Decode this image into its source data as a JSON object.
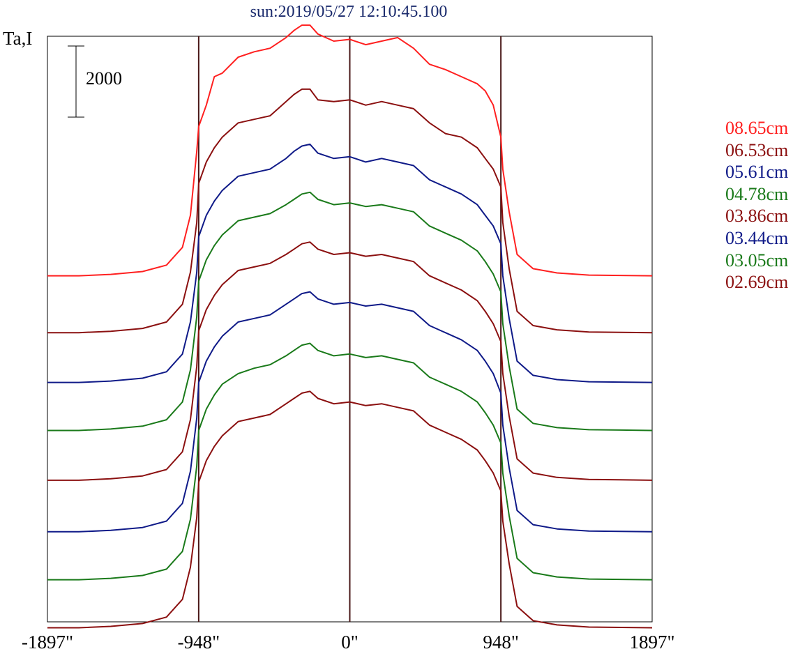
{
  "title": "sun:2019/05/27 12:10:45.100",
  "chart_data": {
    "type": "line",
    "title": "sun:2019/05/27 12:10:45.100",
    "ylabel": "Ta,I",
    "xlabel": "",
    "scale_bar_label": "2000",
    "scale_bar_value": 2000,
    "xlim": [
      -1897,
      1897
    ],
    "x_ticks": [
      {
        "value": -1897,
        "label": "-1897\""
      },
      {
        "value": -948,
        "label": "-948\""
      },
      {
        "value": 0,
        "label": "0\""
      },
      {
        "value": 948,
        "label": "948\""
      },
      {
        "value": 1897,
        "label": "1897\""
      }
    ],
    "vertical_markers": [
      -948,
      0,
      948
    ],
    "marker_color": "#4a1818",
    "legend_position": "right",
    "series": [
      {
        "name": "08.65cm",
        "color": "#ff2020",
        "baseline": 6400,
        "x": [
          -1897,
          -1700,
          -1500,
          -1300,
          -1150,
          -1050,
          -1000,
          -960,
          -948,
          -900,
          -850,
          -800,
          -700,
          -600,
          -500,
          -400,
          -350,
          -300,
          -250,
          -200,
          -100,
          0,
          100,
          200,
          300,
          400,
          500,
          600,
          700,
          800,
          850,
          900,
          948,
          960,
          1000,
          1050,
          1150,
          1300,
          1500,
          1700,
          1897
        ],
        "y": [
          0,
          0,
          40,
          120,
          300,
          800,
          1700,
          3500,
          4200,
          4800,
          5600,
          5700,
          6150,
          6300,
          6400,
          6700,
          6900,
          7050,
          7050,
          6800,
          6600,
          6650,
          6500,
          6600,
          6700,
          6400,
          5950,
          5800,
          5600,
          5400,
          5200,
          4800,
          3900,
          3000,
          1800,
          600,
          200,
          80,
          20,
          10,
          0
        ]
      },
      {
        "name": "06.53cm",
        "color": "#8b1010",
        "baseline": 4800,
        "x": [
          -1897,
          -1700,
          -1500,
          -1300,
          -1150,
          -1050,
          -1000,
          -960,
          -948,
          -900,
          -850,
          -800,
          -700,
          -600,
          -500,
          -400,
          -350,
          -300,
          -250,
          -200,
          -100,
          0,
          100,
          200,
          300,
          400,
          500,
          600,
          700,
          800,
          850,
          900,
          948,
          960,
          1000,
          1050,
          1150,
          1300,
          1500,
          1700,
          1897
        ],
        "y": [
          0,
          0,
          40,
          120,
          300,
          800,
          1700,
          3100,
          4200,
          4800,
          5200,
          5500,
          5900,
          6000,
          6100,
          6500,
          6700,
          6850,
          6850,
          6550,
          6500,
          6550,
          6400,
          6500,
          6400,
          6300,
          5900,
          5600,
          5500,
          5200,
          4900,
          4600,
          4100,
          3100,
          1800,
          600,
          200,
          80,
          20,
          10,
          0
        ]
      },
      {
        "name": "05.61cm",
        "color": "#0f1a88",
        "baseline": 3400,
        "x": [
          -1897,
          -1700,
          -1500,
          -1300,
          -1150,
          -1050,
          -1000,
          -960,
          -948,
          -900,
          -850,
          -800,
          -700,
          -600,
          -500,
          -400,
          -350,
          -300,
          -250,
          -200,
          -100,
          0,
          100,
          200,
          300,
          400,
          500,
          600,
          700,
          800,
          850,
          900,
          948,
          960,
          1000,
          1050,
          1150,
          1300,
          1500,
          1700,
          1897
        ],
        "y": [
          0,
          0,
          40,
          120,
          300,
          800,
          1700,
          3100,
          4100,
          4700,
          5100,
          5400,
          5800,
          5900,
          6000,
          6300,
          6500,
          6650,
          6700,
          6450,
          6300,
          6350,
          6200,
          6300,
          6200,
          6100,
          5700,
          5500,
          5300,
          5000,
          4700,
          4400,
          3900,
          3000,
          1800,
          600,
          200,
          80,
          20,
          10,
          0
        ]
      },
      {
        "name": "04.78cm",
        "color": "#1a7a1a",
        "baseline": 2050,
        "x": [
          -1897,
          -1700,
          -1500,
          -1300,
          -1150,
          -1050,
          -1000,
          -960,
          -948,
          -900,
          -850,
          -800,
          -700,
          -600,
          -500,
          -400,
          -350,
          -300,
          -250,
          -200,
          -100,
          0,
          100,
          200,
          300,
          400,
          500,
          600,
          700,
          800,
          850,
          900,
          948,
          960,
          1000,
          1050,
          1150,
          1300,
          1500,
          1700,
          1897
        ],
        "y": [
          0,
          0,
          40,
          120,
          300,
          800,
          1700,
          3200,
          4200,
          4800,
          5200,
          5500,
          5900,
          6000,
          6100,
          6350,
          6500,
          6650,
          6700,
          6500,
          6350,
          6400,
          6300,
          6350,
          6250,
          6150,
          5750,
          5550,
          5350,
          5050,
          4750,
          4400,
          3900,
          3000,
          1800,
          600,
          200,
          80,
          20,
          10,
          0
        ]
      },
      {
        "name": "03.86cm",
        "color": "#8b1010",
        "baseline": 650,
        "x": [
          -1897,
          -1700,
          -1500,
          -1300,
          -1150,
          -1050,
          -1000,
          -960,
          -948,
          -900,
          -850,
          -800,
          -700,
          -600,
          -500,
          -400,
          -350,
          -300,
          -250,
          -200,
          -100,
          0,
          100,
          200,
          300,
          400,
          500,
          600,
          700,
          800,
          850,
          900,
          948,
          960,
          1000,
          1050,
          1150,
          1300,
          1500,
          1700,
          1897
        ],
        "y": [
          0,
          0,
          40,
          120,
          300,
          800,
          1700,
          3200,
          4200,
          4800,
          5200,
          5500,
          5900,
          6000,
          6100,
          6350,
          6500,
          6650,
          6700,
          6500,
          6350,
          6400,
          6300,
          6350,
          6250,
          6150,
          5750,
          5550,
          5350,
          5050,
          4750,
          4400,
          3900,
          3000,
          1800,
          600,
          200,
          80,
          20,
          10,
          0
        ]
      },
      {
        "name": "03.44cm",
        "color": "#0f1a88",
        "baseline": -800,
        "x": [
          -1897,
          -1700,
          -1500,
          -1300,
          -1150,
          -1050,
          -1000,
          -960,
          -948,
          -900,
          -850,
          -800,
          -700,
          -600,
          -500,
          -400,
          -350,
          -300,
          -250,
          -200,
          -100,
          0,
          100,
          200,
          300,
          400,
          500,
          600,
          700,
          800,
          850,
          900,
          948,
          960,
          1000,
          1050,
          1150,
          1300,
          1500,
          1700,
          1897
        ],
        "y": [
          0,
          0,
          40,
          120,
          300,
          800,
          1700,
          3200,
          4200,
          4800,
          5200,
          5500,
          5900,
          6000,
          6100,
          6400,
          6550,
          6700,
          6750,
          6550,
          6400,
          6450,
          6350,
          6400,
          6300,
          6200,
          5800,
          5600,
          5400,
          5100,
          4800,
          4450,
          3900,
          3000,
          1800,
          600,
          200,
          80,
          20,
          10,
          0
        ]
      },
      {
        "name": "03.05cm",
        "color": "#1a7a1a",
        "baseline": -2150,
        "x": [
          -1897,
          -1700,
          -1500,
          -1300,
          -1150,
          -1050,
          -1000,
          -960,
          -948,
          -900,
          -850,
          -800,
          -700,
          -600,
          -500,
          -400,
          -350,
          -300,
          -250,
          -200,
          -100,
          0,
          100,
          200,
          300,
          400,
          500,
          600,
          700,
          800,
          850,
          900,
          948,
          960,
          1000,
          1050,
          1150,
          1300,
          1500,
          1700,
          1897
        ],
        "y": [
          0,
          0,
          40,
          120,
          300,
          800,
          1700,
          3200,
          4200,
          4800,
          5200,
          5500,
          5800,
          5950,
          6050,
          6300,
          6450,
          6600,
          6650,
          6450,
          6300,
          6350,
          6250,
          6300,
          6200,
          6100,
          5700,
          5500,
          5300,
          5000,
          4700,
          4350,
          3850,
          3000,
          1800,
          600,
          200,
          80,
          20,
          10,
          0
        ]
      },
      {
        "name": "02.69cm",
        "color": "#8b1010",
        "baseline": -3500,
        "x": [
          -1897,
          -1700,
          -1500,
          -1300,
          -1150,
          -1050,
          -1000,
          -960,
          -948,
          -900,
          -850,
          -800,
          -700,
          -600,
          -500,
          -400,
          -350,
          -300,
          -250,
          -200,
          -100,
          0,
          100,
          200,
          300,
          400,
          500,
          600,
          700,
          800,
          850,
          900,
          948,
          960,
          1000,
          1050,
          1150,
          1300,
          1500,
          1700,
          1897
        ],
        "y": [
          0,
          0,
          40,
          120,
          300,
          800,
          1700,
          3100,
          4100,
          4700,
          5100,
          5400,
          5800,
          5900,
          6000,
          6300,
          6450,
          6600,
          6650,
          6450,
          6300,
          6350,
          6250,
          6300,
          6200,
          6100,
          5700,
          5500,
          5300,
          5000,
          4700,
          4350,
          3850,
          3000,
          1800,
          600,
          200,
          80,
          20,
          10,
          0
        ]
      }
    ]
  }
}
